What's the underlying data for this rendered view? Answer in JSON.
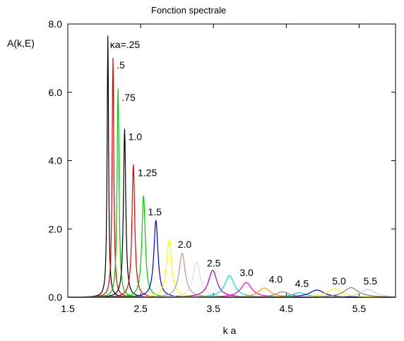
{
  "chart_data": {
    "type": "line",
    "title": "Fonction spectrale",
    "xlabel": "k a",
    "ylabel": "A(k,E)",
    "xlim": [
      1.5,
      6.0
    ],
    "ylim": [
      0.0,
      8.0
    ],
    "xticks": [
      1.5,
      2.5,
      3.5,
      4.5,
      5.5
    ],
    "xtick_labels": [
      "1.5",
      "2.5",
      "3.5",
      "4.5",
      "5.5"
    ],
    "yticks": [
      0.0,
      2.0,
      4.0,
      6.0,
      8.0
    ],
    "ytick_labels": [
      "0.0",
      "2.0",
      "4.0",
      "6.0",
      "8.0"
    ],
    "grid": false,
    "legend": "none",
    "series": [
      {
        "color": "#000000",
        "peak_x": 2.05,
        "peak_y": 7.65,
        "width": 0.012
      },
      {
        "color": "#e00000",
        "peak_x": 2.12,
        "peak_y": 7.0,
        "width": 0.014
      },
      {
        "color": "#00cc00",
        "peak_x": 2.19,
        "peak_y": 6.1,
        "width": 0.016
      },
      {
        "color": "#000000",
        "peak_x": 2.28,
        "peak_y": 4.92,
        "width": 0.019
      },
      {
        "color": "#e00000",
        "peak_x": 2.4,
        "peak_y": 3.88,
        "width": 0.023
      },
      {
        "color": "#00cc00",
        "peak_x": 2.54,
        "peak_y": 2.97,
        "width": 0.028
      },
      {
        "color": "#0000cc",
        "peak_x": 2.71,
        "peak_y": 2.25,
        "width": 0.034
      },
      {
        "color": "#ffff00",
        "peak_x": 2.89,
        "peak_y": 1.68,
        "width": 0.042
      },
      {
        "color": "#b8968c",
        "peak_x": 3.07,
        "peak_y": 1.29,
        "width": 0.05
      },
      {
        "color": "#dddddd",
        "peak_x": 3.27,
        "peak_y": 1.03,
        "width": 0.06
      },
      {
        "color": "#aa00aa",
        "peak_x": 3.49,
        "peak_y": 0.79,
        "width": 0.07
      },
      {
        "color": "#00dddd",
        "peak_x": 3.72,
        "peak_y": 0.63,
        "width": 0.08
      },
      {
        "color": "#ff00cc",
        "peak_x": 3.95,
        "peak_y": 0.43,
        "width": 0.09
      },
      {
        "color": "#ff9900",
        "peak_x": 4.2,
        "peak_y": 0.27,
        "width": 0.1
      },
      {
        "color": "#888888",
        "peak_x": 4.45,
        "peak_y": 0.16,
        "width": 0.11
      },
      {
        "color": "#00cccc",
        "peak_x": 4.68,
        "peak_y": 0.13,
        "width": 0.12
      },
      {
        "color": "#0000cc",
        "peak_x": 4.92,
        "peak_y": 0.21,
        "width": 0.12
      },
      {
        "color": "#ffff00",
        "peak_x": 5.16,
        "peak_y": 0.25,
        "width": 0.12
      },
      {
        "color": "#9a7070",
        "peak_x": 5.39,
        "peak_y": 0.28,
        "width": 0.12
      },
      {
        "color": "#cccccc",
        "peak_x": 5.62,
        "peak_y": 0.23,
        "width": 0.12
      }
    ],
    "annotations": [
      {
        "text": "κa=.25",
        "x": 2.08,
        "y": 7.3
      },
      {
        "text": ".5",
        "x": 2.17,
        "y": 6.7
      },
      {
        "text": ".75",
        "x": 2.24,
        "y": 5.75
      },
      {
        "text": "1.0",
        "x": 2.33,
        "y": 4.6
      },
      {
        "text": "1.25",
        "x": 2.46,
        "y": 3.55
      },
      {
        "text": "1.5",
        "x": 2.6,
        "y": 2.4
      },
      {
        "text": "2.0",
        "x": 3.01,
        "y": 1.45
      },
      {
        "text": "2.5",
        "x": 3.41,
        "y": 0.9
      },
      {
        "text": "3.0",
        "x": 3.86,
        "y": 0.62
      },
      {
        "text": "4.0",
        "x": 4.26,
        "y": 0.42
      },
      {
        "text": "4.5",
        "x": 4.62,
        "y": 0.3
      },
      {
        "text": "5.0",
        "x": 5.13,
        "y": 0.37
      },
      {
        "text": "5.5",
        "x": 5.56,
        "y": 0.37
      }
    ]
  }
}
